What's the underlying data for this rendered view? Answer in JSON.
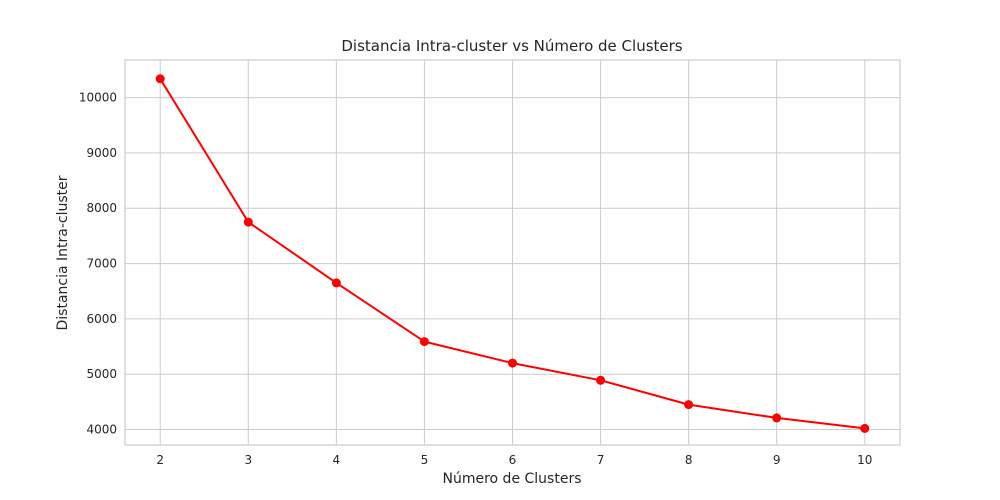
{
  "chart_data": {
    "type": "line",
    "title": "Distancia Intra-cluster vs Número de Clusters",
    "xlabel": "Número de Clusters",
    "ylabel": "Distancia Intra-cluster",
    "x": [
      2,
      3,
      4,
      5,
      6,
      7,
      8,
      9,
      10
    ],
    "series": [
      {
        "values": [
          10340,
          7750,
          6650,
          5590,
          5200,
          4890,
          4450,
          4210,
          4020
        ],
        "color": "#ff0000",
        "marker": "circle"
      }
    ],
    "xlim": [
      1.6,
      10.4
    ],
    "ylim": [
      3720,
      10680
    ],
    "xticks": [
      2,
      3,
      4,
      5,
      6,
      7,
      8,
      9,
      10
    ],
    "yticks": [
      4000,
      5000,
      6000,
      7000,
      8000,
      9000,
      10000
    ],
    "grid": true,
    "legend": "none"
  }
}
